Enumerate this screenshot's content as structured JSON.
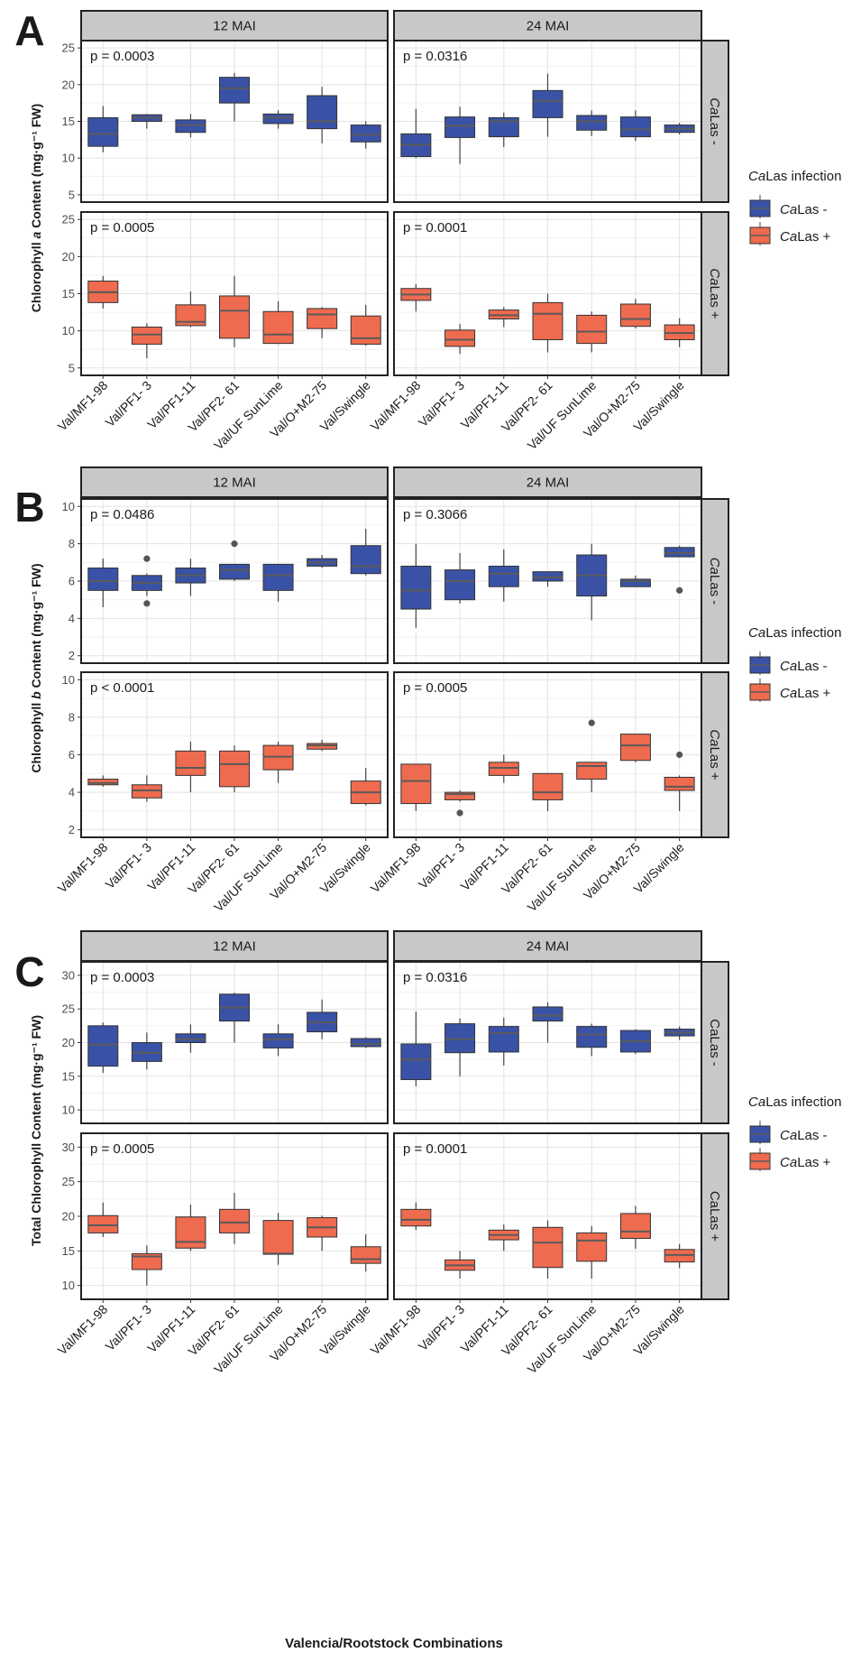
{
  "xlabel": "Valencia/Rootstock Combinations",
  "colors": {
    "neg": "#3a52a6",
    "pos": "#ee6b4f",
    "strip": "#c8c8c8",
    "median": "#5a5a5a"
  },
  "legend": {
    "title_italic": "Ca",
    "title_rest": "Las infection",
    "neg_italic": "Ca",
    "neg_rest": "Las -",
    "pos_italic": "Ca",
    "pos_rest": "Las +"
  },
  "chart_data": [
    {
      "panel": "A",
      "type": "box",
      "ylabel": [
        "Chlorophyll ",
        "a",
        " Content (mg·g⁻¹ FW)"
      ],
      "ylim": [
        4,
        26
      ],
      "yticks": [
        5,
        10,
        15,
        20,
        25
      ],
      "columns": [
        "12 MAI",
        "24 MAI"
      ],
      "rows": [
        {
          "italic": "Ca",
          "rest": "Las -"
        },
        {
          "italic": "Ca",
          "rest": "Las +"
        }
      ],
      "categories": [
        "Val/MF1-98",
        "Val/PF1- 3",
        "Val/PF1-11",
        "Val/PF2- 61",
        "Val/UF SunLime",
        "Val/O+M2-75",
        "Val/Swingle"
      ],
      "facets": [
        {
          "row": 0,
          "col": 0,
          "p": "p = 0.0003",
          "group": "neg",
          "boxes": [
            {
              "min": 10.8,
              "q1": 11.6,
              "med": 13.3,
              "q3": 15.5,
              "max": 17.1
            },
            {
              "min": 14.0,
              "q1": 15.0,
              "med": 15.5,
              "q3": 15.9,
              "max": 16.0
            },
            {
              "min": 12.8,
              "q1": 13.5,
              "med": 14.5,
              "q3": 15.2,
              "max": 16.0
            },
            {
              "min": 15.0,
              "q1": 17.5,
              "med": 19.5,
              "q3": 21.0,
              "max": 21.6
            },
            {
              "min": 14.0,
              "q1": 14.7,
              "med": 15.5,
              "q3": 16.0,
              "max": 16.5
            },
            {
              "min": 12.0,
              "q1": 14.0,
              "med": 15.0,
              "q3": 18.5,
              "max": 19.7
            },
            {
              "min": 11.3,
              "q1": 12.2,
              "med": 13.2,
              "q3": 14.5,
              "max": 15.0
            }
          ]
        },
        {
          "row": 0,
          "col": 1,
          "p": "p = 0.0316",
          "group": "neg",
          "boxes": [
            {
              "min": 10.0,
              "q1": 10.2,
              "med": 11.8,
              "q3": 13.3,
              "max": 16.7
            },
            {
              "min": 9.2,
              "q1": 12.8,
              "med": 14.4,
              "q3": 15.6,
              "max": 17.0
            },
            {
              "min": 11.5,
              "q1": 12.9,
              "med": 15.0,
              "q3": 15.5,
              "max": 16.2
            },
            {
              "min": 12.9,
              "q1": 15.5,
              "med": 17.8,
              "q3": 19.2,
              "max": 21.5
            },
            {
              "min": 13.0,
              "q1": 13.8,
              "med": 15.0,
              "q3": 15.8,
              "max": 16.5
            },
            {
              "min": 12.3,
              "q1": 12.9,
              "med": 13.9,
              "q3": 15.6,
              "max": 16.5
            },
            {
              "min": 13.2,
              "q1": 13.5,
              "med": 14.0,
              "q3": 14.5,
              "max": 14.8
            }
          ]
        },
        {
          "row": 1,
          "col": 0,
          "p": "p = 0.0005",
          "group": "pos",
          "boxes": [
            {
              "min": 13.0,
              "q1": 13.8,
              "med": 15.2,
              "q3": 16.7,
              "max": 17.4
            },
            {
              "min": 6.3,
              "q1": 8.2,
              "med": 9.5,
              "q3": 10.5,
              "max": 11.0
            },
            {
              "min": 10.5,
              "q1": 10.7,
              "med": 11.2,
              "q3": 13.5,
              "max": 15.3
            },
            {
              "min": 7.8,
              "q1": 9.0,
              "med": 12.7,
              "q3": 14.7,
              "max": 17.4
            },
            {
              "min": 8.2,
              "q1": 8.3,
              "med": 9.5,
              "q3": 12.6,
              "max": 14.0
            },
            {
              "min": 9.0,
              "q1": 10.3,
              "med": 12.2,
              "q3": 13.0,
              "max": 13.2
            },
            {
              "min": 8.0,
              "q1": 8.2,
              "med": 9.0,
              "q3": 12.0,
              "max": 13.5
            }
          ]
        },
        {
          "row": 1,
          "col": 1,
          "p": "p = 0.0001",
          "group": "pos",
          "boxes": [
            {
              "min": 12.6,
              "q1": 14.1,
              "med": 14.9,
              "q3": 15.7,
              "max": 16.3
            },
            {
              "min": 6.9,
              "q1": 7.9,
              "med": 8.8,
              "q3": 10.1,
              "max": 10.9
            },
            {
              "min": 10.5,
              "q1": 11.6,
              "med": 12.1,
              "q3": 12.8,
              "max": 13.2
            },
            {
              "min": 7.1,
              "q1": 8.8,
              "med": 12.3,
              "q3": 13.8,
              "max": 15.0
            },
            {
              "min": 7.1,
              "q1": 8.3,
              "med": 9.9,
              "q3": 12.1,
              "max": 12.6
            },
            {
              "min": 10.3,
              "q1": 10.6,
              "med": 11.6,
              "q3": 13.6,
              "max": 14.3
            },
            {
              "min": 7.8,
              "q1": 8.8,
              "med": 9.7,
              "q3": 10.8,
              "max": 11.7
            }
          ]
        }
      ]
    },
    {
      "panel": "B",
      "type": "box",
      "ylabel": [
        "Chlorophyll ",
        "b",
        " Content (mg·g⁻¹ FW)"
      ],
      "ylim": [
        1.6,
        10.4
      ],
      "yticks": [
        2,
        4,
        6,
        8,
        10
      ],
      "columns": [
        "12 MAI",
        "24 MAI"
      ],
      "rows": [
        {
          "italic": "Ca",
          "rest": "Las -"
        },
        {
          "italic": "Ca",
          "rest": "Las +"
        }
      ],
      "categories": [
        "Val/MF1-98",
        "Val/PF1- 3",
        "Val/PF1-11",
        "Val/PF2- 61",
        "Val/UF SunLime",
        "Val/O+M2-75",
        "Val/Swingle"
      ],
      "facets": [
        {
          "row": 0,
          "col": 0,
          "p": "p = 0.0486",
          "group": "neg",
          "boxes": [
            {
              "min": 4.6,
              "q1": 5.5,
              "med": 6.0,
              "q3": 6.7,
              "max": 7.2
            },
            {
              "min": 5.2,
              "q1": 5.5,
              "med": 5.9,
              "q3": 6.3,
              "max": 6.4,
              "outliers": [
                7.2,
                4.8
              ]
            },
            {
              "min": 5.2,
              "q1": 5.9,
              "med": 6.3,
              "q3": 6.7,
              "max": 7.2
            },
            {
              "min": 6.0,
              "q1": 6.1,
              "med": 6.6,
              "q3": 6.9,
              "max": 6.9,
              "outliers": [
                8.0
              ]
            },
            {
              "min": 4.9,
              "q1": 5.5,
              "med": 6.3,
              "q3": 6.9,
              "max": 6.9
            },
            {
              "min": 6.7,
              "q1": 6.8,
              "med": 7.0,
              "q3": 7.2,
              "max": 7.4
            },
            {
              "min": 6.3,
              "q1": 6.4,
              "med": 6.8,
              "q3": 7.9,
              "max": 8.8
            }
          ]
        },
        {
          "row": 0,
          "col": 1,
          "p": "p = 0.3066",
          "group": "neg",
          "boxes": [
            {
              "min": 3.5,
              "q1": 4.5,
              "med": 5.5,
              "q3": 6.8,
              "max": 8.0
            },
            {
              "min": 4.8,
              "q1": 5.0,
              "med": 6.0,
              "q3": 6.6,
              "max": 7.5
            },
            {
              "min": 4.9,
              "q1": 5.7,
              "med": 6.4,
              "q3": 6.8,
              "max": 7.7
            },
            {
              "min": 5.7,
              "q1": 6.0,
              "med": 6.2,
              "q3": 6.5,
              "max": 6.5
            },
            {
              "min": 3.9,
              "q1": 5.2,
              "med": 6.3,
              "q3": 7.4,
              "max": 8.0
            },
            {
              "min": 5.7,
              "q1": 5.7,
              "med": 6.0,
              "q3": 6.1,
              "max": 6.3
            },
            {
              "min": 7.3,
              "q1": 7.3,
              "med": 7.5,
              "q3": 7.8,
              "max": 7.9,
              "outliers": [
                5.5
              ]
            }
          ]
        },
        {
          "row": 1,
          "col": 0,
          "p": "p < 0.0001",
          "group": "pos",
          "boxes": [
            {
              "min": 4.3,
              "q1": 4.4,
              "med": 4.5,
              "q3": 4.7,
              "max": 4.9
            },
            {
              "min": 3.5,
              "q1": 3.7,
              "med": 4.1,
              "q3": 4.4,
              "max": 4.9
            },
            {
              "min": 4.0,
              "q1": 4.9,
              "med": 5.3,
              "q3": 6.2,
              "max": 6.7
            },
            {
              "min": 4.0,
              "q1": 4.3,
              "med": 5.5,
              "q3": 6.2,
              "max": 6.5
            },
            {
              "min": 4.5,
              "q1": 5.2,
              "med": 5.9,
              "q3": 6.5,
              "max": 6.7
            },
            {
              "min": 6.2,
              "q1": 6.3,
              "med": 6.5,
              "q3": 6.6,
              "max": 6.8
            },
            {
              "min": 3.3,
              "q1": 3.4,
              "med": 4.0,
              "q3": 4.6,
              "max": 5.3
            }
          ]
        },
        {
          "row": 1,
          "col": 1,
          "p": "p = 0.0005",
          "group": "pos",
          "boxes": [
            {
              "min": 3.0,
              "q1": 3.4,
              "med": 4.6,
              "q3": 5.5,
              "max": 5.5
            },
            {
              "min": 3.5,
              "q1": 3.6,
              "med": 3.9,
              "q3": 4.0,
              "max": 4.1,
              "outliers": [
                2.9
              ]
            },
            {
              "min": 4.5,
              "q1": 4.9,
              "med": 5.3,
              "q3": 5.6,
              "max": 6.0
            },
            {
              "min": 3.0,
              "q1": 3.6,
              "med": 4.0,
              "q3": 5.0,
              "max": 5.0
            },
            {
              "min": 4.0,
              "q1": 4.7,
              "med": 5.4,
              "q3": 5.6,
              "max": 5.6,
              "outliers": [
                7.7
              ]
            },
            {
              "min": 5.6,
              "q1": 5.7,
              "med": 6.5,
              "q3": 7.1,
              "max": 7.1
            },
            {
              "min": 3.0,
              "q1": 4.1,
              "med": 4.3,
              "q3": 4.8,
              "max": 4.9,
              "outliers": [
                6.0
              ]
            }
          ]
        }
      ]
    },
    {
      "panel": "C",
      "type": "box",
      "ylabel": [
        "Total Chlorophyll Content (mg·g⁻¹ FW)"
      ],
      "ylim": [
        8,
        32
      ],
      "yticks": [
        10,
        15,
        20,
        25,
        30
      ],
      "columns": [
        "12 MAI",
        "24 MAI"
      ],
      "rows": [
        {
          "italic": "",
          "rest": "CaLas -"
        },
        {
          "italic": "",
          "rest": "CaLas +"
        }
      ],
      "categories": [
        "Val/MF1-98",
        "Val/PF1- 3",
        "Val/PF1-11",
        "Val/PF2- 61",
        "Val/UF SunLime",
        "Val/O+M2-75",
        "Val/Swingle"
      ],
      "facets": [
        {
          "row": 0,
          "col": 0,
          "p": "p = 0.0003",
          "group": "neg",
          "boxes": [
            {
              "min": 15.5,
              "q1": 16.5,
              "med": 19.7,
              "q3": 22.5,
              "max": 23.0
            },
            {
              "min": 16.0,
              "q1": 17.2,
              "med": 18.5,
              "q3": 20.0,
              "max": 21.5
            },
            {
              "min": 18.5,
              "q1": 20.0,
              "med": 20.5,
              "q3": 21.3,
              "max": 22.7
            },
            {
              "min": 20.0,
              "q1": 23.2,
              "med": 25.2,
              "q3": 27.2,
              "max": 27.4
            },
            {
              "min": 18.0,
              "q1": 19.2,
              "med": 20.5,
              "q3": 21.3,
              "max": 22.7
            },
            {
              "min": 20.5,
              "q1": 21.6,
              "med": 23.0,
              "q3": 24.5,
              "max": 26.4
            },
            {
              "min": 19.2,
              "q1": 19.4,
              "med": 19.8,
              "q3": 20.6,
              "max": 20.8
            }
          ]
        },
        {
          "row": 0,
          "col": 1,
          "p": "p = 0.0316",
          "group": "neg",
          "boxes": [
            {
              "min": 13.5,
              "q1": 14.5,
              "med": 17.5,
              "q3": 19.8,
              "max": 24.6
            },
            {
              "min": 15.0,
              "q1": 18.5,
              "med": 20.5,
              "q3": 22.8,
              "max": 23.6
            },
            {
              "min": 16.6,
              "q1": 18.6,
              "med": 21.4,
              "q3": 22.4,
              "max": 23.7
            },
            {
              "min": 20.0,
              "q1": 23.2,
              "med": 24.0,
              "q3": 25.3,
              "max": 26.0
            },
            {
              "min": 18.0,
              "q1": 19.3,
              "med": 21.2,
              "q3": 22.4,
              "max": 22.8
            },
            {
              "min": 18.3,
              "q1": 18.6,
              "med": 20.2,
              "q3": 21.8,
              "max": 22.0
            },
            {
              "min": 20.4,
              "q1": 21.0,
              "med": 21.5,
              "q3": 22.0,
              "max": 22.4
            }
          ]
        },
        {
          "row": 1,
          "col": 0,
          "p": "p = 0.0005",
          "group": "pos",
          "boxes": [
            {
              "min": 17.0,
              "q1": 17.6,
              "med": 18.7,
              "q3": 20.1,
              "max": 22.0
            },
            {
              "min": 10.0,
              "q1": 12.3,
              "med": 14.2,
              "q3": 14.6,
              "max": 15.8
            },
            {
              "min": 15.0,
              "q1": 15.4,
              "med": 16.3,
              "q3": 19.9,
              "max": 21.7
            },
            {
              "min": 16.0,
              "q1": 17.6,
              "med": 19.1,
              "q3": 21.0,
              "max": 23.4
            },
            {
              "min": 13.0,
              "q1": 14.5,
              "med": 14.6,
              "q3": 19.4,
              "max": 20.5
            },
            {
              "min": 15.0,
              "q1": 17.0,
              "med": 18.4,
              "q3": 19.8,
              "max": 20.1
            },
            {
              "min": 12.0,
              "q1": 13.2,
              "med": 13.8,
              "q3": 15.6,
              "max": 17.4
            }
          ]
        },
        {
          "row": 1,
          "col": 1,
          "p": "p = 0.0001",
          "group": "pos",
          "boxes": [
            {
              "min": 18.0,
              "q1": 18.6,
              "med": 19.5,
              "q3": 21.0,
              "max": 22.0
            },
            {
              "min": 11.0,
              "q1": 12.2,
              "med": 12.9,
              "q3": 13.7,
              "max": 15.0
            },
            {
              "min": 15.0,
              "q1": 16.6,
              "med": 17.3,
              "q3": 18.0,
              "max": 18.8
            },
            {
              "min": 11.0,
              "q1": 12.6,
              "med": 16.2,
              "q3": 18.4,
              "max": 19.4
            },
            {
              "min": 11.0,
              "q1": 13.5,
              "med": 16.5,
              "q3": 17.6,
              "max": 18.6
            },
            {
              "min": 15.3,
              "q1": 16.8,
              "med": 17.8,
              "q3": 20.4,
              "max": 21.5
            },
            {
              "min": 12.5,
              "q1": 13.4,
              "med": 14.4,
              "q3": 15.2,
              "max": 16.0
            }
          ]
        }
      ]
    }
  ]
}
